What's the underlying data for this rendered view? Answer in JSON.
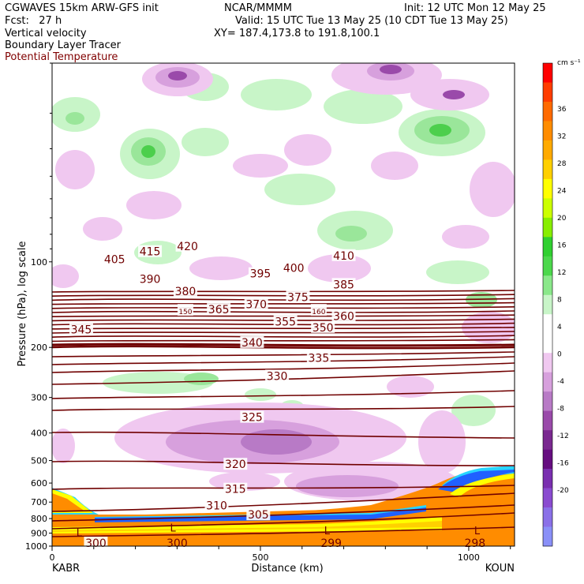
{
  "header": {
    "model": "CGWAVES 15km ARW-GFS init",
    "forecast": "Fcst:   27 h",
    "field1": "Vertical velocity",
    "field2": "Boundary Layer Tracer",
    "field3": "Potential Temperature",
    "org": "NCAR/MMMM",
    "valid": "Valid: 15 UTC Tue 13 May 25 (10 CDT Tue 13 May 25)",
    "xy": "XY= 187.4,173.8 to 191.8,100.1",
    "init": "Init: 12 UTC Mon 12 May 25"
  },
  "colors": {
    "theta": "#700000",
    "field3_text": "#800000",
    "up_light": "#c8f5c8",
    "up_mid": "#9ae69a",
    "up_dark": "#4ccf4c",
    "down_light": "#f0c8f0",
    "down_mid": "#d7a0dd",
    "down_dark": "#9a4aaa",
    "down_darkest": "#660d80",
    "tracer_orange": "#ff8c00",
    "tracer_yellow": "#ffff00",
    "tracer_cyan": "#28d4ff",
    "tracer_blue": "#2060ff"
  },
  "chart_data": {
    "type": "cross-section",
    "xlabel": "Distance (km)",
    "ylabel": "Pressure (hPa), log scale",
    "xlim": [
      0,
      1110
    ],
    "ylim": [
      1000,
      20
    ],
    "yscale": "log",
    "x_ticks": [
      {
        "label": "0",
        "value": 0
      },
      {
        "label": "500",
        "value": 500
      },
      {
        "label": "1000",
        "value": 1000
      }
    ],
    "y_ticks": [
      {
        "label": "100",
        "value": 100
      },
      {
        "label": "200",
        "value": 200
      },
      {
        "label": "300",
        "value": 300
      },
      {
        "label": "400",
        "value": 400
      },
      {
        "label": "500",
        "value": 500
      },
      {
        "label": "600",
        "value": 600
      },
      {
        "label": "700",
        "value": 700
      },
      {
        "label": "800",
        "value": 800
      },
      {
        "label": "900",
        "value": 900
      },
      {
        "label": "1000",
        "value": 1000
      }
    ],
    "endpoints": {
      "left": "KABR",
      "right": "KOUN"
    },
    "colorbar": {
      "unit": "cm s⁻¹",
      "labels": [
        "36",
        "32",
        "28",
        "24",
        "20",
        "16",
        "12",
        "8",
        "4",
        "0",
        "-4",
        "-8",
        "-12",
        "-16",
        "-20"
      ],
      "colors": [
        "#ff0000",
        "#ff3c00",
        "#ff6a00",
        "#ff8c00",
        "#ffaa00",
        "#ffd000",
        "#ffff00",
        "#ccff00",
        "#88ee00",
        "#30d030",
        "#4cd84c",
        "#8ae88a",
        "#c8f5c8",
        "#ffffff",
        "#ffffff",
        "#f0c8f0",
        "#d7a0dd",
        "#b87ac6",
        "#9a4aaa",
        "#7a2890",
        "#660d80",
        "#7a2fb0",
        "#8a4bd0",
        "#8a70e8",
        "#8a90f8"
      ]
    },
    "theta_labels": [
      {
        "t": "420",
        "x": 325,
        "p": 88
      },
      {
        "t": "415",
        "x": 235,
        "p": 92
      },
      {
        "t": "405",
        "x": 150,
        "p": 98
      },
      {
        "t": "390",
        "x": 235,
        "p": 115
      },
      {
        "t": "380",
        "x": 320,
        "p": 127
      },
      {
        "t": "370",
        "x": 490,
        "p": 141
      },
      {
        "t": "365",
        "x": 400,
        "p": 147
      },
      {
        "t": "360",
        "x": 700,
        "p": 155
      },
      {
        "t": "355",
        "x": 560,
        "p": 162
      },
      {
        "t": "350",
        "x": 650,
        "p": 170
      },
      {
        "t": "345",
        "x": 70,
        "p": 173
      },
      {
        "t": "340",
        "x": 480,
        "p": 192
      },
      {
        "t": "335",
        "x": 640,
        "p": 218
      },
      {
        "t": "330",
        "x": 540,
        "p": 252
      },
      {
        "t": "325",
        "x": 480,
        "p": 352
      },
      {
        "t": "320",
        "x": 440,
        "p": 515
      },
      {
        "t": "315",
        "x": 440,
        "p": 630
      },
      {
        "t": "310",
        "x": 395,
        "p": 720
      },
      {
        "t": "305",
        "x": 495,
        "p": 775
      },
      {
        "t": "300",
        "x": 105,
        "p": 975
      },
      {
        "t": "410",
        "x": 700,
        "p": 95
      },
      {
        "t": "400",
        "x": 580,
        "p": 105
      },
      {
        "t": "395",
        "x": 500,
        "p": 110
      },
      {
        "t": "385",
        "x": 700,
        "p": 120
      },
      {
        "t": "375",
        "x": 590,
        "p": 133
      },
      {
        "t": "150",
        "x": 320,
        "p": 148
      },
      {
        "t": "160",
        "x": 640,
        "p": 148
      }
    ],
    "annotations": [
      {
        "t": "L",
        "x": 65,
        "p": 895
      },
      {
        "t": "L",
        "x": 290,
        "p": 860
      },
      {
        "t": "L",
        "x": 660,
        "p": 880
      },
      {
        "t": "L",
        "x": 1020,
        "p": 880
      },
      {
        "t": "300",
        "x": 300,
        "p": 975
      },
      {
        "t": "299",
        "x": 670,
        "p": 975
      },
      {
        "t": "298",
        "x": 1015,
        "p": 975
      }
    ]
  }
}
